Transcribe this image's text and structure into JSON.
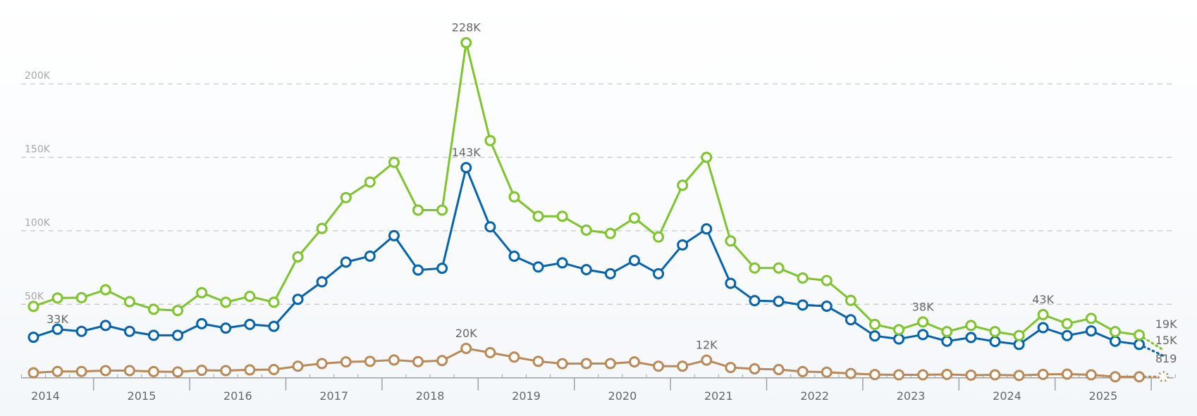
{
  "chart_data": {
    "type": "line",
    "title": "",
    "xlabel": "",
    "ylabel": "",
    "ylim": [
      0,
      240000
    ],
    "grid": true,
    "legend": "none",
    "y_ticks": [
      {
        "value": 50000,
        "label": "50K"
      },
      {
        "value": 100000,
        "label": "100K"
      },
      {
        "value": 150000,
        "label": "150K"
      },
      {
        "value": 200000,
        "label": "200K"
      }
    ],
    "x_year_labels": [
      "2014",
      "2015",
      "2016",
      "2017",
      "2018",
      "2019",
      "2020",
      "2021",
      "2022",
      "2023",
      "2024",
      "2025"
    ],
    "x": [
      "2014 Q2",
      "2014 Q3",
      "2014 Q4",
      "2015 Q1",
      "2015 Q2",
      "2015 Q3",
      "2015 Q4",
      "2016 Q1",
      "2016 Q2",
      "2016 Q3",
      "2016 Q4",
      "2017 Q1",
      "2017 Q2",
      "2017 Q3",
      "2017 Q4",
      "2018 Q1",
      "2018 Q2",
      "2018 Q3",
      "2018 Q4",
      "2019 Q1",
      "2019 Q2",
      "2019 Q3",
      "2019 Q4",
      "2020 Q1",
      "2020 Q2",
      "2020 Q3",
      "2020 Q4",
      "2021 Q1",
      "2021 Q2",
      "2021 Q3",
      "2021 Q4",
      "2022 Q1",
      "2022 Q2",
      "2022 Q3",
      "2022 Q4",
      "2023 Q1",
      "2023 Q2",
      "2023 Q3",
      "2023 Q4",
      "2024 Q1",
      "2024 Q2",
      "2024 Q3",
      "2024 Q4",
      "2025 Q1",
      "2025 Q2",
      "2025 Q3",
      "2025 Q4",
      "2026 Q1"
    ],
    "partial_last_point": true,
    "series": [
      {
        "color": "#7ec42c",
        "values": [
          48600,
          54300,
          54500,
          59900,
          51800,
          46600,
          45800,
          57900,
          51400,
          55400,
          51400,
          82300,
          101600,
          122600,
          133200,
          146600,
          114100,
          114100,
          228000,
          161400,
          123100,
          109900,
          109900,
          100500,
          98200,
          108700,
          95800,
          131000,
          150000,
          93100,
          74700,
          74700,
          67900,
          66200,
          52700,
          36300,
          32700,
          38000,
          31400,
          35600,
          31400,
          28700,
          43000,
          36800,
          40400,
          31400,
          29100,
          19000
        ],
        "labels": [
          {
            "index": 18,
            "text": "228K"
          },
          {
            "index": 37,
            "text": "38K"
          },
          {
            "index": 42,
            "text": "43K"
          },
          {
            "index": 47,
            "text": "19K"
          }
        ]
      },
      {
        "color": "#0564ad",
        "values": [
          27600,
          33000,
          31600,
          35600,
          31600,
          28900,
          28900,
          36800,
          33800,
          36300,
          35000,
          53400,
          65300,
          78700,
          82800,
          96700,
          73300,
          74500,
          143000,
          102700,
          82700,
          75400,
          78200,
          73600,
          70800,
          79800,
          70800,
          90400,
          101300,
          64300,
          52500,
          52000,
          49500,
          48700,
          39500,
          28500,
          26400,
          29400,
          24900,
          27400,
          24700,
          22700,
          34100,
          28700,
          31900,
          24900,
          22700,
          15000
        ],
        "labels": [
          {
            "index": 1,
            "text": "33K"
          },
          {
            "index": 18,
            "text": "143K"
          },
          {
            "index": 47,
            "text": "15K"
          }
        ]
      },
      {
        "color": "#b98a57",
        "values": [
          3400,
          4300,
          4300,
          4900,
          4900,
          4200,
          4000,
          5100,
          4900,
          5400,
          5600,
          7900,
          9700,
          10800,
          11200,
          12100,
          11000,
          11700,
          20000,
          17100,
          14100,
          11200,
          9600,
          9700,
          9700,
          10800,
          7900,
          7900,
          12000,
          7000,
          6100,
          5600,
          4200,
          3800,
          2900,
          2200,
          2000,
          2000,
          2300,
          1800,
          2000,
          1600,
          2300,
          2500,
          2000,
          700,
          700,
          819
        ],
        "labels": [
          {
            "index": 18,
            "text": "20K"
          },
          {
            "index": 28,
            "text": "12K"
          },
          {
            "index": 47,
            "text": "819"
          }
        ]
      }
    ]
  }
}
